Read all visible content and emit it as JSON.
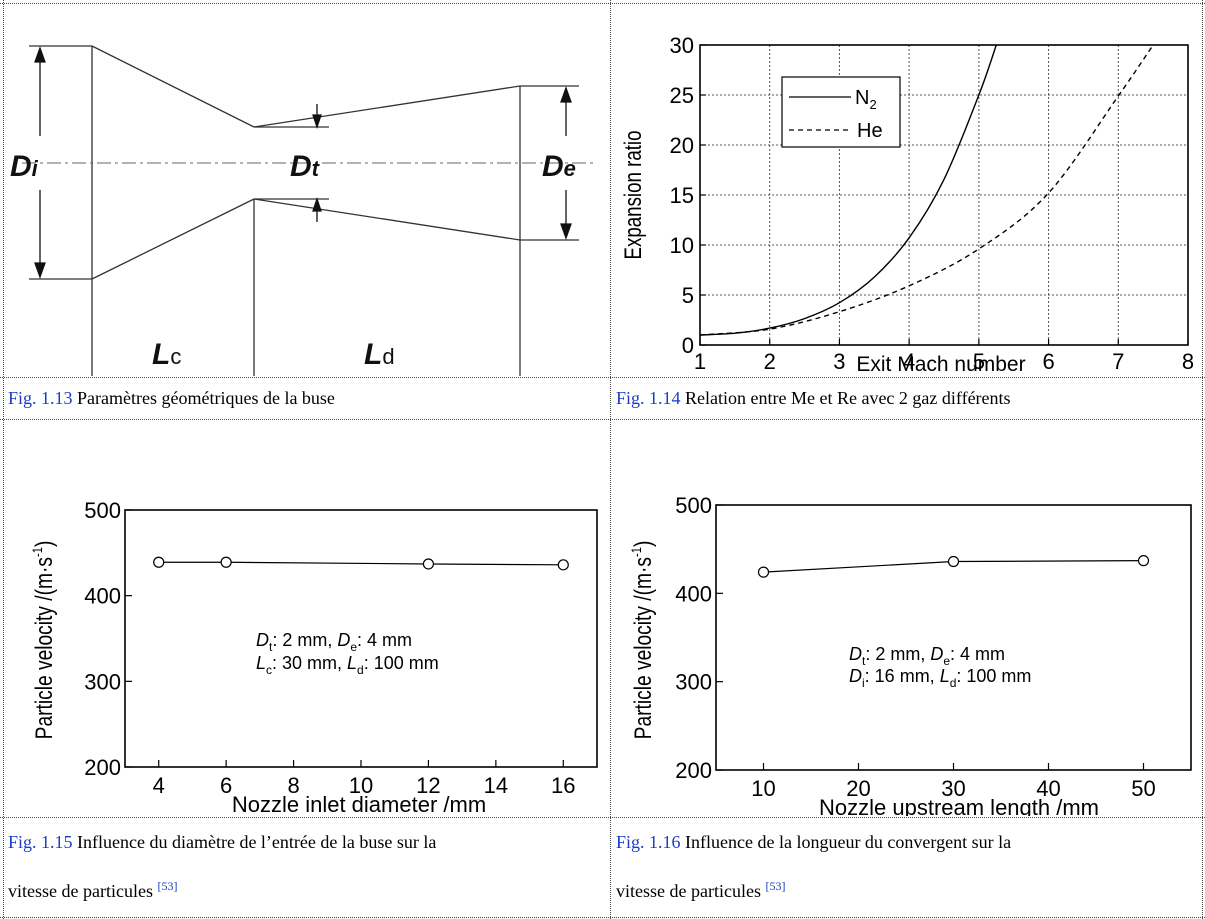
{
  "figures": {
    "fig13": {
      "caption_ref": "Fig. 1.13",
      "caption_text": " Paramètres géométriques de la buse",
      "labels": {
        "Di_main": "D",
        "Di_sub": "i",
        "Dt_main": "D",
        "Dt_sub": "t",
        "De_main": "D",
        "De_sub": "e",
        "Lc_main": "L",
        "Lc_sub": "c",
        "Ld_main": "L",
        "Ld_sub": "d"
      }
    },
    "fig14": {
      "caption_ref": "Fig. 1.14",
      "caption_text": " Relation entre Me et Re avec 2 gaz différents"
    },
    "fig15": {
      "caption_ref": "Fig. 1.15",
      "caption_line1": " Influence du diamètre de l’entrée de la buse sur la",
      "caption_line2": "vitesse de particules ",
      "caption_cite": "[53]",
      "annot": {
        "l1_a": "D",
        "l1_a_sub": "t",
        "l1_b": ": 2 mm, ",
        "l1_c": "D",
        "l1_c_sub": "e",
        "l1_d": ": 4 mm",
        "l2_a": "L",
        "l2_a_sub": "c",
        "l2_b": ": 30 mm, ",
        "l2_c": "L",
        "l2_c_sub": "d",
        "l2_d": ": 100 mm"
      }
    },
    "fig16": {
      "caption_ref": "Fig. 1.16",
      "caption_line1": " Influence de la longueur du convergent sur la",
      "caption_line2": "vitesse de particules ",
      "caption_cite": "[53]",
      "annot": {
        "l1_a": "D",
        "l1_a_sub": "t",
        "l1_b": ": 2 mm, ",
        "l1_c": "D",
        "l1_c_sub": "e",
        "l1_d": ": 4 mm",
        "l2_a": "D",
        "l2_a_sub": "i",
        "l2_b": ": 16 mm, ",
        "l2_c": "L",
        "l2_c_sub": "d",
        "l2_d": ": 100 mm"
      }
    }
  },
  "chart_data": [
    {
      "id": "fig14",
      "type": "line",
      "xlabel": "Exit Mach number",
      "ylabel": "Expansion ratio",
      "xlim": [
        1,
        8
      ],
      "ylim": [
        0,
        30
      ],
      "xticks": [
        1,
        2,
        3,
        4,
        5,
        6,
        7,
        8
      ],
      "yticks": [
        0,
        5,
        10,
        15,
        20,
        25,
        30
      ],
      "grid": true,
      "legend_position": "top-left",
      "series": [
        {
          "name": "N",
          "name_sub": "2",
          "style": "solid",
          "x": [
            1.0,
            1.5,
            2.0,
            2.5,
            3.0,
            3.5,
            4.0,
            4.5,
            5.0,
            5.25
          ],
          "y": [
            1.0,
            1.18,
            1.69,
            2.64,
            4.23,
            6.79,
            10.72,
            16.56,
            25.0,
            30.0
          ]
        },
        {
          "name": "He",
          "style": "dashed",
          "x": [
            1.0,
            2.0,
            3.0,
            4.0,
            5.0,
            6.0,
            7.0,
            7.5
          ],
          "y": [
            1.0,
            1.59,
            3.33,
            5.92,
            9.61,
            15.2,
            24.9,
            30.0
          ]
        }
      ]
    },
    {
      "id": "fig15",
      "type": "line",
      "xlabel": "Nozzle inlet diameter /mm",
      "ylabel_main": "Particle velocity /(m·s",
      "ylabel_sup": "-1",
      "ylabel_end": ")",
      "xlim": [
        3,
        17
      ],
      "ylim": [
        200,
        500
      ],
      "xticks": [
        4,
        6,
        8,
        10,
        12,
        14,
        16
      ],
      "yticks": [
        200,
        300,
        400,
        500
      ],
      "markers": "open-circle",
      "x": [
        4,
        6,
        12,
        16
      ],
      "y": [
        439,
        439,
        437,
        436
      ]
    },
    {
      "id": "fig16",
      "type": "line",
      "xlabel": "Nozzle upstream length /mm",
      "ylabel_main": "Particle velocity /(m·s",
      "ylabel_sup": "-1",
      "ylabel_end": ")",
      "xlim": [
        5,
        55
      ],
      "ylim": [
        200,
        500
      ],
      "xticks": [
        10,
        20,
        30,
        40,
        50
      ],
      "yticks": [
        200,
        300,
        400,
        500
      ],
      "markers": "open-circle",
      "x": [
        10,
        30,
        50
      ],
      "y": [
        424,
        436,
        437
      ]
    }
  ]
}
